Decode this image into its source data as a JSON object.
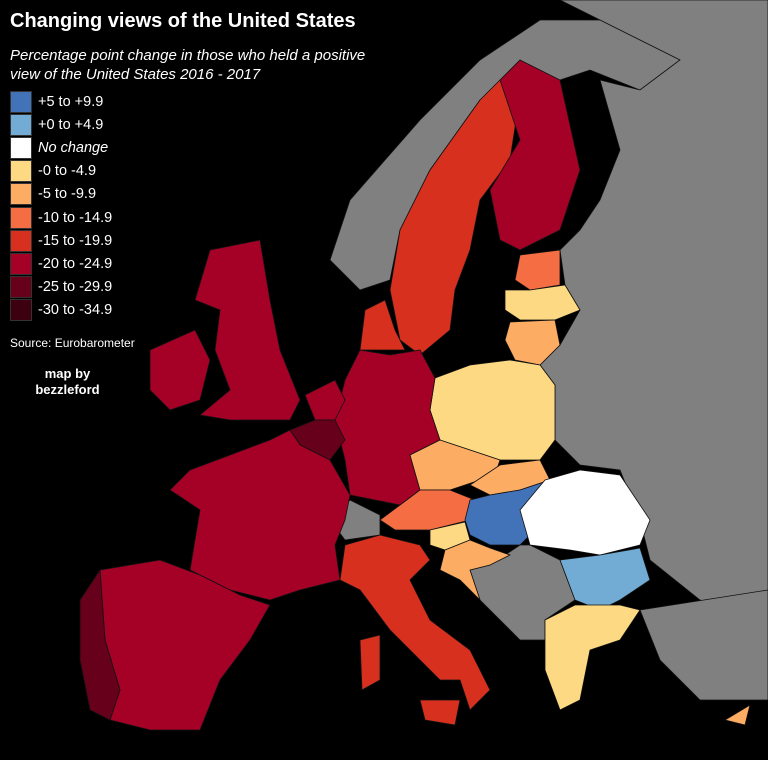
{
  "title": "Changing views of the United States",
  "subtitle": "Percentage point change in those who held a positive view of the United States 2016 - 2017",
  "legend": [
    {
      "label": "+5 to +9.9",
      "color": "#4272b8"
    },
    {
      "label": "+0 to +4.9",
      "color": "#72abd3"
    },
    {
      "label": "No change",
      "color": "#ffffff"
    },
    {
      "label": "-0 to -4.9",
      "color": "#fdd983"
    },
    {
      "label": "-5 to -9.9",
      "color": "#fcac63"
    },
    {
      "label": "-10 to -14.9",
      "color": "#f46d43"
    },
    {
      "label": "-15 to -19.9",
      "color": "#d7301f"
    },
    {
      "label": "-20 to -24.9",
      "color": "#a50026"
    },
    {
      "label": "-25 to -29.9",
      "color": "#67001a"
    },
    {
      "label": "-30 to -34.9",
      "color": "#3d0010"
    }
  ],
  "no_data_color": "#808080",
  "source": "Source: Eurobarometer",
  "credit": {
    "line1": "map by",
    "line2": "bezzleford"
  },
  "regions": {
    "UK": 7,
    "IE": 7,
    "FR": 7,
    "ES": 7,
    "PT": 8,
    "BE": 8,
    "NL": 7,
    "DE": 7,
    "DK": 6,
    "SE": 6,
    "FI": 7,
    "EE": 5,
    "LV": 3,
    "LT": 4,
    "PL": 3,
    "CZ": 4,
    "SK": 4,
    "AT": 5,
    "HU": 0,
    "RO": 2,
    "BG": 1,
    "GR": 3,
    "SI": 3,
    "HR": 4,
    "IT": 6,
    "CY": 4
  }
}
